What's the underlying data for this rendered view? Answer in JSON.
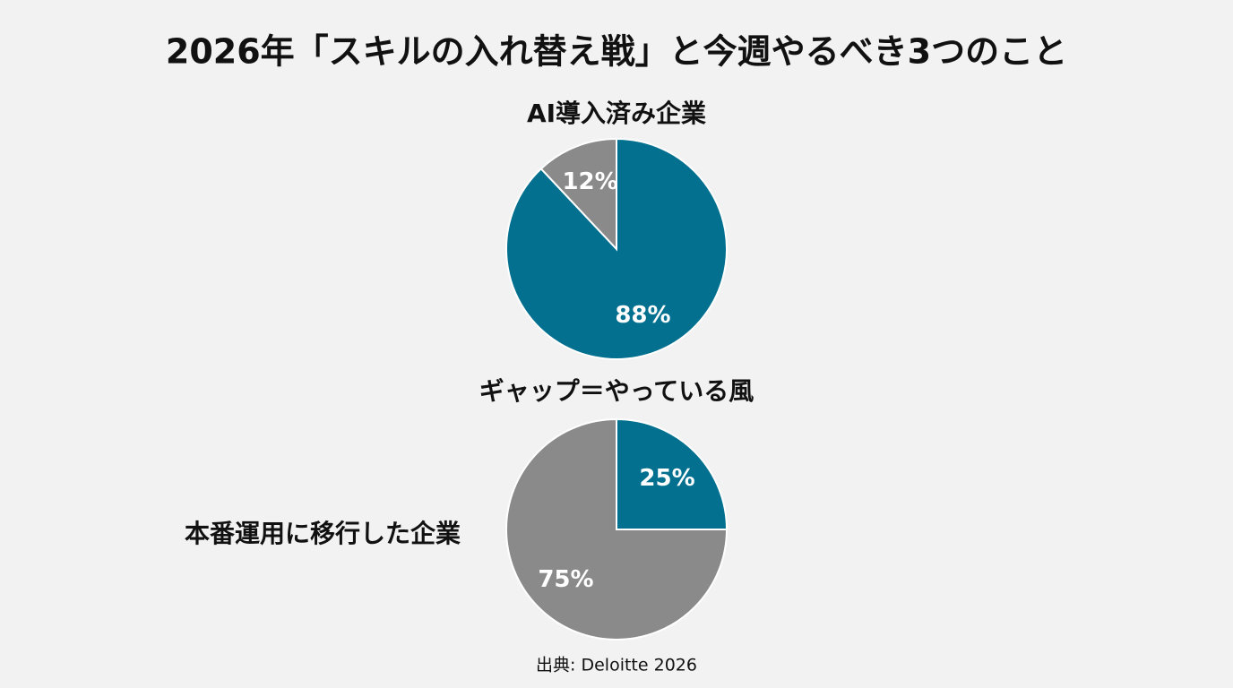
{
  "title": "2026年「スキルの入れ替え戦」と今週やるべき3つのこと",
  "annotation": "ギャップ＝やっている風",
  "source": "出典: Deloitte 2026",
  "chart_data": [
    {
      "type": "pie",
      "title": "AI導入済み企業",
      "values": [
        88,
        12
      ],
      "value_labels": [
        "88%",
        "12%"
      ],
      "colors": [
        "#03708f",
        "#8a8a8a"
      ]
    },
    {
      "type": "pie",
      "title": "本番運用に移行した企業",
      "values": [
        25,
        75
      ],
      "value_labels": [
        "25%",
        "75%"
      ],
      "colors": [
        "#03708f",
        "#8a8a8a"
      ]
    }
  ]
}
